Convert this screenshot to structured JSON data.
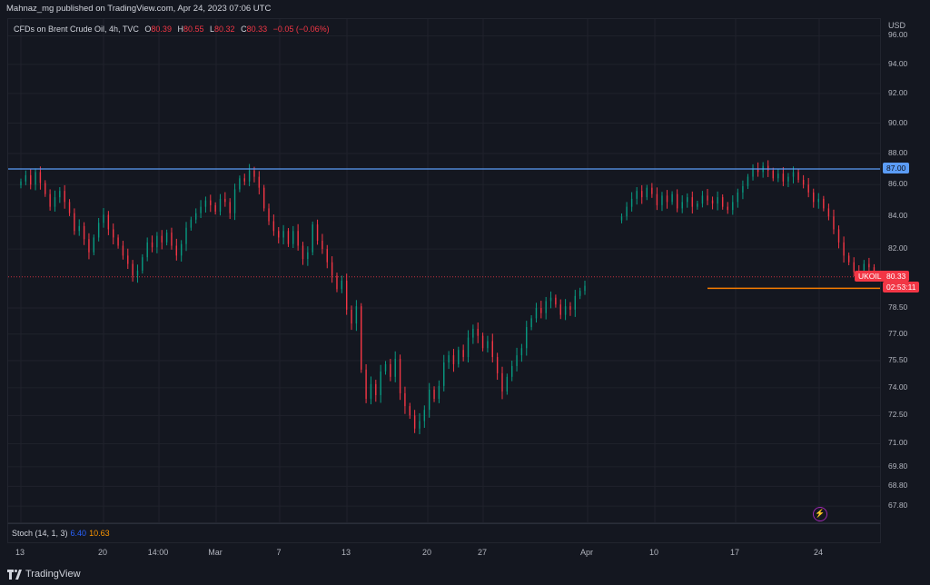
{
  "header": {
    "published": "Mahnaz_mg published on TradingView.com, Apr 24, 2023 07:06 UTC"
  },
  "legend": {
    "symbol": "CFDs on Brent Crude Oil, 4h, TVC",
    "open_label": "O",
    "open": "80.39",
    "high_label": "H",
    "high": "80.55",
    "low_label": "L",
    "low": "80.32",
    "close_label": "C",
    "close": "80.33",
    "change": "−0.05 (−0.06%)"
  },
  "stoch": {
    "label": "Stoch (14, 1, 3)",
    "k": "6.40",
    "d": "10.63"
  },
  "price_axis": {
    "unit": "USD",
    "ticks": [
      "96.00",
      "94.00",
      "92.00",
      "90.00",
      "88.00",
      "86.00",
      "84.00",
      "82.00",
      "78.50",
      "77.00",
      "75.50",
      "74.00",
      "72.50",
      "71.00",
      "69.80",
      "68.80",
      "67.80"
    ],
    "resistance_tag": "87.00",
    "last_price_tag": "80.33",
    "countdown_tag": "02:53:11",
    "symbol_tag": "UKOIL"
  },
  "time_axis": {
    "ticks": [
      "13",
      "20",
      "14:00",
      "Mar",
      "7",
      "13",
      "20",
      "27",
      "Apr",
      "10",
      "17",
      "24"
    ]
  },
  "footer": {
    "brand": "TradingView"
  },
  "colors": {
    "up": "#089981",
    "down": "#f23645",
    "resistance": "#5b9cf6",
    "support": "#f57c00",
    "background": "#141720",
    "grid": "#1f222b"
  },
  "chart_data": {
    "type": "candlestick",
    "interval": "4h",
    "y_unit": "USD",
    "y_scale": "log",
    "ylim": [
      66.9,
      97.2
    ],
    "grid": true,
    "price_levels": [
      {
        "price": 87.0,
        "style": "horizontal",
        "color": "#5b9cf6"
      },
      {
        "price": 79.65,
        "style": "ray",
        "color": "#f57c00",
        "from": "2023-04-10"
      },
      {
        "price": 80.33,
        "style": "last-price-dotted",
        "color": "#f23645"
      }
    ],
    "segments": [
      {
        "from": "2023-02-13",
        "to": "2023-03-31",
        "closes": [
          86.2,
          86.6,
          86.0,
          86.8,
          86.1,
          85.4,
          84.6,
          85.2,
          85.6,
          84.9,
          84.2,
          83.1,
          83.4,
          82.6,
          81.8,
          82.7,
          83.6,
          84.1,
          83.2,
          82.7,
          82.2,
          81.6,
          81.1,
          80.4,
          80.7,
          81.5,
          82.4,
          82.1,
          82.8,
          82.4,
          83.0,
          82.2,
          81.6,
          82.3,
          83.3,
          83.8,
          84.2,
          84.6,
          85.0,
          84.7,
          84.3,
          85.1,
          84.9,
          84.2,
          85.7,
          86.4,
          86.2,
          86.9,
          86.5,
          85.8,
          84.5,
          83.7,
          83.1,
          82.7,
          83.1,
          82.3,
          83.1,
          82.2,
          81.4,
          81.8,
          83.5,
          82.5,
          82.0,
          81.2,
          80.4,
          79.6,
          80.1,
          78.4,
          77.6,
          78.6,
          75.0,
          73.4,
          74.2,
          73.6,
          74.9,
          75.3,
          74.6,
          75.6,
          73.7,
          73.0,
          72.5,
          71.8,
          72.2,
          72.8,
          73.9,
          73.4,
          74.1,
          75.4,
          75.8,
          75.3,
          76.1,
          75.7,
          76.8,
          77.3,
          76.9,
          76.2,
          76.6,
          75.7,
          74.8,
          73.8,
          74.6,
          75.2,
          75.8,
          76.2,
          77.4,
          77.9,
          78.5,
          78.2,
          78.9,
          79.1,
          78.7,
          78.1,
          78.6,
          78.4,
          79.2,
          79.5,
          79.8
        ]
      },
      {
        "from": "2023-04-03",
        "to": "2023-04-24",
        "closes": [
          84.0,
          84.6,
          85.1,
          85.6,
          85.2,
          85.8,
          85.4,
          84.7,
          85.3,
          84.9,
          85.4,
          84.5,
          84.9,
          85.2,
          84.6,
          84.8,
          85.3,
          85.0,
          84.8,
          85.2,
          84.6,
          84.4,
          84.9,
          85.5,
          85.9,
          86.5,
          87.0,
          86.8,
          87.2,
          86.9,
          86.4,
          86.7,
          86.2,
          86.5,
          86.8,
          86.3,
          86.0,
          85.5,
          84.9,
          85.1,
          84.5,
          84.0,
          83.2,
          82.4,
          81.6,
          81.2,
          80.6,
          80.5,
          81.1,
          80.9,
          80.39,
          80.33
        ]
      }
    ]
  }
}
